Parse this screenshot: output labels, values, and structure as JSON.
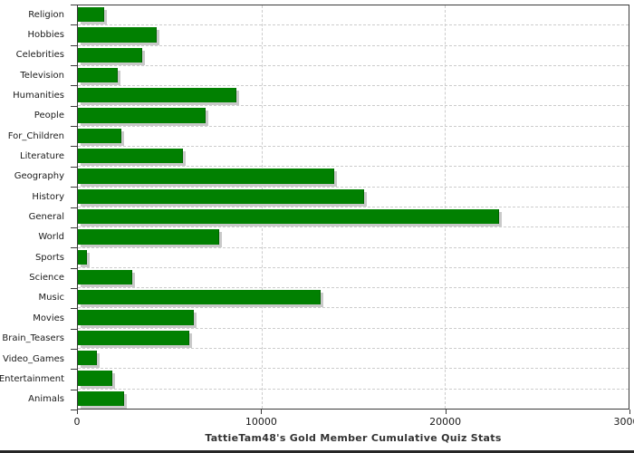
{
  "chart_data": {
    "type": "bar",
    "orientation": "horizontal",
    "title": "TattieTam48's Gold Member Cumulative Quiz Stats",
    "categories": [
      "Religion",
      "Hobbies",
      "Celebrities",
      "Television",
      "Humanities",
      "People",
      "For_Children",
      "Literature",
      "Geography",
      "History",
      "General",
      "World",
      "Sports",
      "Science",
      "Music",
      "Movies",
      "Brain_Teasers",
      "Video_Games",
      "Entertainment",
      "Animals"
    ],
    "values": [
      1400,
      4250,
      3450,
      2100,
      8600,
      6900,
      2300,
      5650,
      13900,
      15550,
      22900,
      7650,
      450,
      2900,
      13150,
      6270,
      6000,
      970,
      1830,
      2450
    ],
    "xlabel": "",
    "ylabel": "",
    "xlim": [
      0,
      30000
    ],
    "x_ticks": [
      0,
      10000,
      20000,
      30000
    ],
    "x_tick_labels": [
      "0",
      "10000",
      "20000",
      "30000"
    ],
    "grid": "dashed",
    "legend": "none",
    "colors": {
      "bar": "#018001",
      "bar_edge": "#006400",
      "bar_shadow": "#c9c9c9",
      "gridline": "#cccccc",
      "plot_border": "#3a3a3a",
      "text": "#1a1a1a",
      "title_text": "#333333"
    }
  }
}
